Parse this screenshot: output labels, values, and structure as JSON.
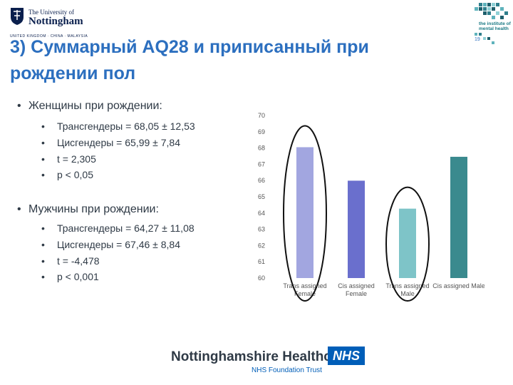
{
  "header": {
    "university_line1": "The University of",
    "university_line2": "Nottingham",
    "university_line3": "UNITED KINGDOM · CHINA · MALAYSIA",
    "institute_line1": "the institute of",
    "institute_line2": "mental health",
    "slide_number": "19"
  },
  "title": {
    "line1": "3) Суммарный AQ28 и приписанный при",
    "line2": "рождении пол"
  },
  "bullets": {
    "female": {
      "heading": "Женщины при рождении:",
      "items": [
        "Трансгендеры = 68,05 ± 12,53",
        "Цисгендеры = 65,99 ± 7,84",
        "t = 2,305",
        "p < 0,05"
      ]
    },
    "male": {
      "heading": "Мужчины при рождении:",
      "items": [
        "Трансгендеры = 64,27 ± 11,08",
        "Цисгендеры = 67,46 ± 8,84",
        "t = -4,478",
        "p < 0,001"
      ]
    },
    "bullet_symbol": "•"
  },
  "chart_data": {
    "type": "bar",
    "categories": [
      [
        "Trans assigned",
        "Female"
      ],
      [
        "Cis assigned",
        "Female"
      ],
      [
        "Trans assigned",
        "Male"
      ],
      [
        "Cis assigned Male"
      ]
    ],
    "values": [
      68.05,
      65.99,
      64.27,
      67.46
    ],
    "colors": [
      "#a2a6e0",
      "#6a6fcd",
      "#7ec4c8",
      "#3a8a8e"
    ],
    "ylim": [
      60,
      70
    ],
    "yticks": [
      60,
      61,
      62,
      63,
      64,
      65,
      66,
      67,
      68,
      69,
      70
    ],
    "grid": false,
    "title": "",
    "xlabel": "",
    "ylabel": "",
    "annotations": "black ellipses circling the first and third bars"
  },
  "footer": {
    "org_name": "Nottinghamshire Healthcare",
    "nhs_badge": "NHS",
    "trust_name": "NHS Foundation Trust"
  }
}
